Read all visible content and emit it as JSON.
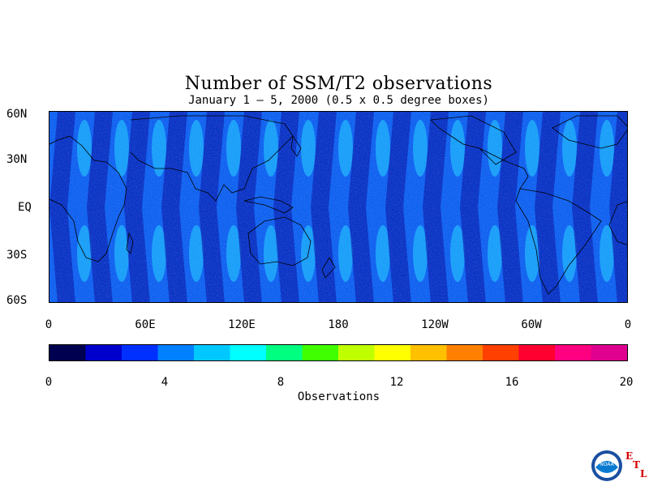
{
  "title": "Number of SSM/T2 observations",
  "subtitle": "January 1 – 5, 2000 (0.5 x 0.5 degree boxes)",
  "lat_labels": [
    "60N",
    "30N",
    "EQ",
    "30S",
    "60S"
  ],
  "lon_labels": [
    "0",
    "60E",
    "120E",
    "180",
    "120W",
    "60W",
    "0"
  ],
  "colorbar": {
    "title": "Observations",
    "ticks": [
      "0",
      "4",
      "8",
      "12",
      "16",
      "20"
    ],
    "min": 0,
    "max": 20,
    "colors": [
      "#000050",
      "#0000cc",
      "#0030ff",
      "#0080ff",
      "#00c8ff",
      "#00ffff",
      "#00ff80",
      "#40ff00",
      "#c0ff00",
      "#ffff00",
      "#ffc000",
      "#ff8000",
      "#ff4000",
      "#ff0030",
      "#ff0080",
      "#e00090"
    ]
  },
  "logo": {
    "text": "NOAA",
    "lab_letters": [
      "E",
      "T",
      "L"
    ],
    "accent": "#d40000",
    "icon": "noaa-logo"
  }
}
